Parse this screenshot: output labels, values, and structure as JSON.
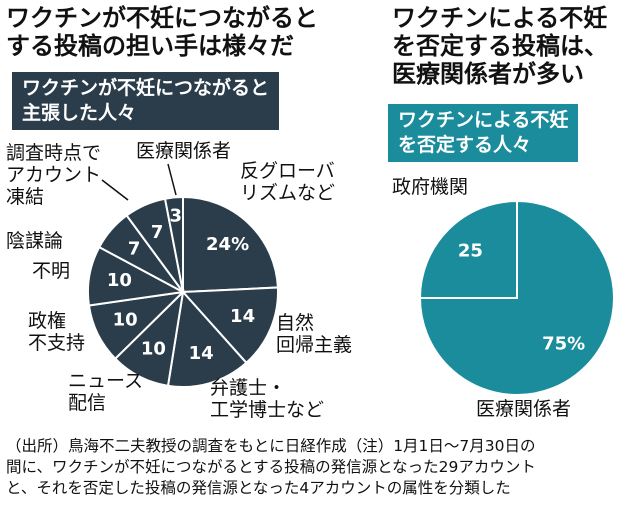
{
  "chart_data": [
    {
      "type": "pie",
      "title": "ワクチンが不妊につながると\nする投稿の担い手は様々だ",
      "subtitle": "ワクチンが不妊につながると\n主張した人々",
      "categories": [
        "反グローバ\nリズムなど",
        "自然\n回帰主義",
        "弁護士・\n工学博士など",
        "ニュース\n配信",
        "政権\n不支持",
        "不明",
        "陰謀論",
        "調査時点で\nアカウント\n凍結",
        "医療関係者"
      ],
      "values": [
        24,
        14,
        14,
        10,
        10,
        10,
        7,
        7,
        3
      ],
      "value_labels": [
        "24%",
        "14",
        "14",
        "10",
        "10",
        "10",
        "7",
        "7",
        "3"
      ],
      "color": "#2b3d4b"
    },
    {
      "type": "pie",
      "title": "ワクチンによる不妊\nを否定する投稿は、\n医療関係者が多い",
      "subtitle": "ワクチンによる不妊\nを否定する人々",
      "categories": [
        "医療関係者",
        "政府機関"
      ],
      "values": [
        75,
        25
      ],
      "value_labels": [
        "75%",
        "25"
      ],
      "color": "#1a8c9c"
    }
  ],
  "note": "（出所）鳥海不二夫教授の調査をもとに日経作成（注）1月1日～7月30日の\n間に、ワクチンが不妊につながるとする投稿の発信源となった29アカウント\nと、それを否定した投稿の発信源となった4アカウントの属性を分類した"
}
